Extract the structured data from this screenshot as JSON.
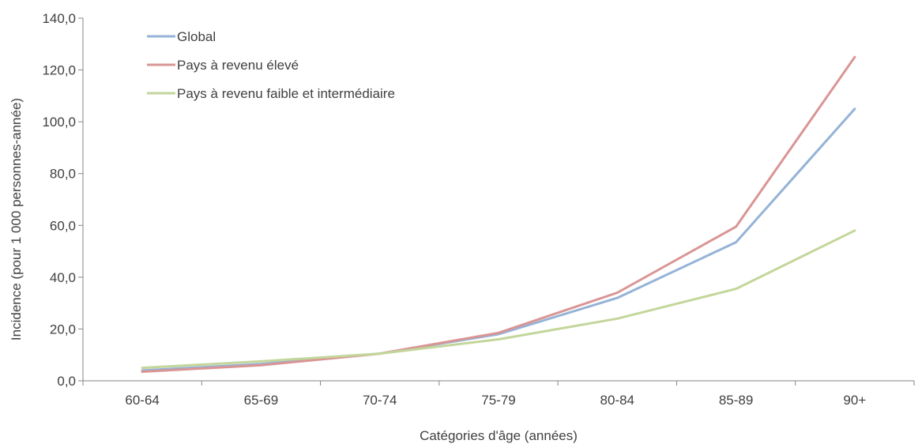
{
  "chart_data": {
    "type": "line",
    "title": "",
    "xlabel": "Catégories d'âge (années)",
    "ylabel": "Incidence  (pour 1 000 personnes-année)",
    "categories": [
      "60-64",
      "65-69",
      "70-74",
      "75-79",
      "80-84",
      "85-89",
      "90+"
    ],
    "ylim": [
      0,
      140
    ],
    "yticks": [
      "0,0",
      "20,0",
      "40,0",
      "60,0",
      "80,0",
      "100,0",
      "120,0",
      "140,0"
    ],
    "ytick_values": [
      0,
      20,
      40,
      60,
      80,
      100,
      120,
      140
    ],
    "grid": false,
    "legend_position": "top-left",
    "series": [
      {
        "name": "Global",
        "color": "#95b3d7",
        "values": [
          4.0,
          6.5,
          10.5,
          18.0,
          32.0,
          53.5,
          105.0
        ]
      },
      {
        "name": "Pays à revenu élevé",
        "color": "#d99594",
        "values": [
          3.5,
          6.0,
          10.5,
          18.5,
          34.0,
          59.5,
          125.0
        ]
      },
      {
        "name": "Pays à revenu faible et intermédiaire",
        "color": "#c3d69b",
        "values": [
          5.0,
          7.5,
          10.5,
          16.0,
          24.0,
          35.5,
          58.0
        ]
      }
    ]
  }
}
